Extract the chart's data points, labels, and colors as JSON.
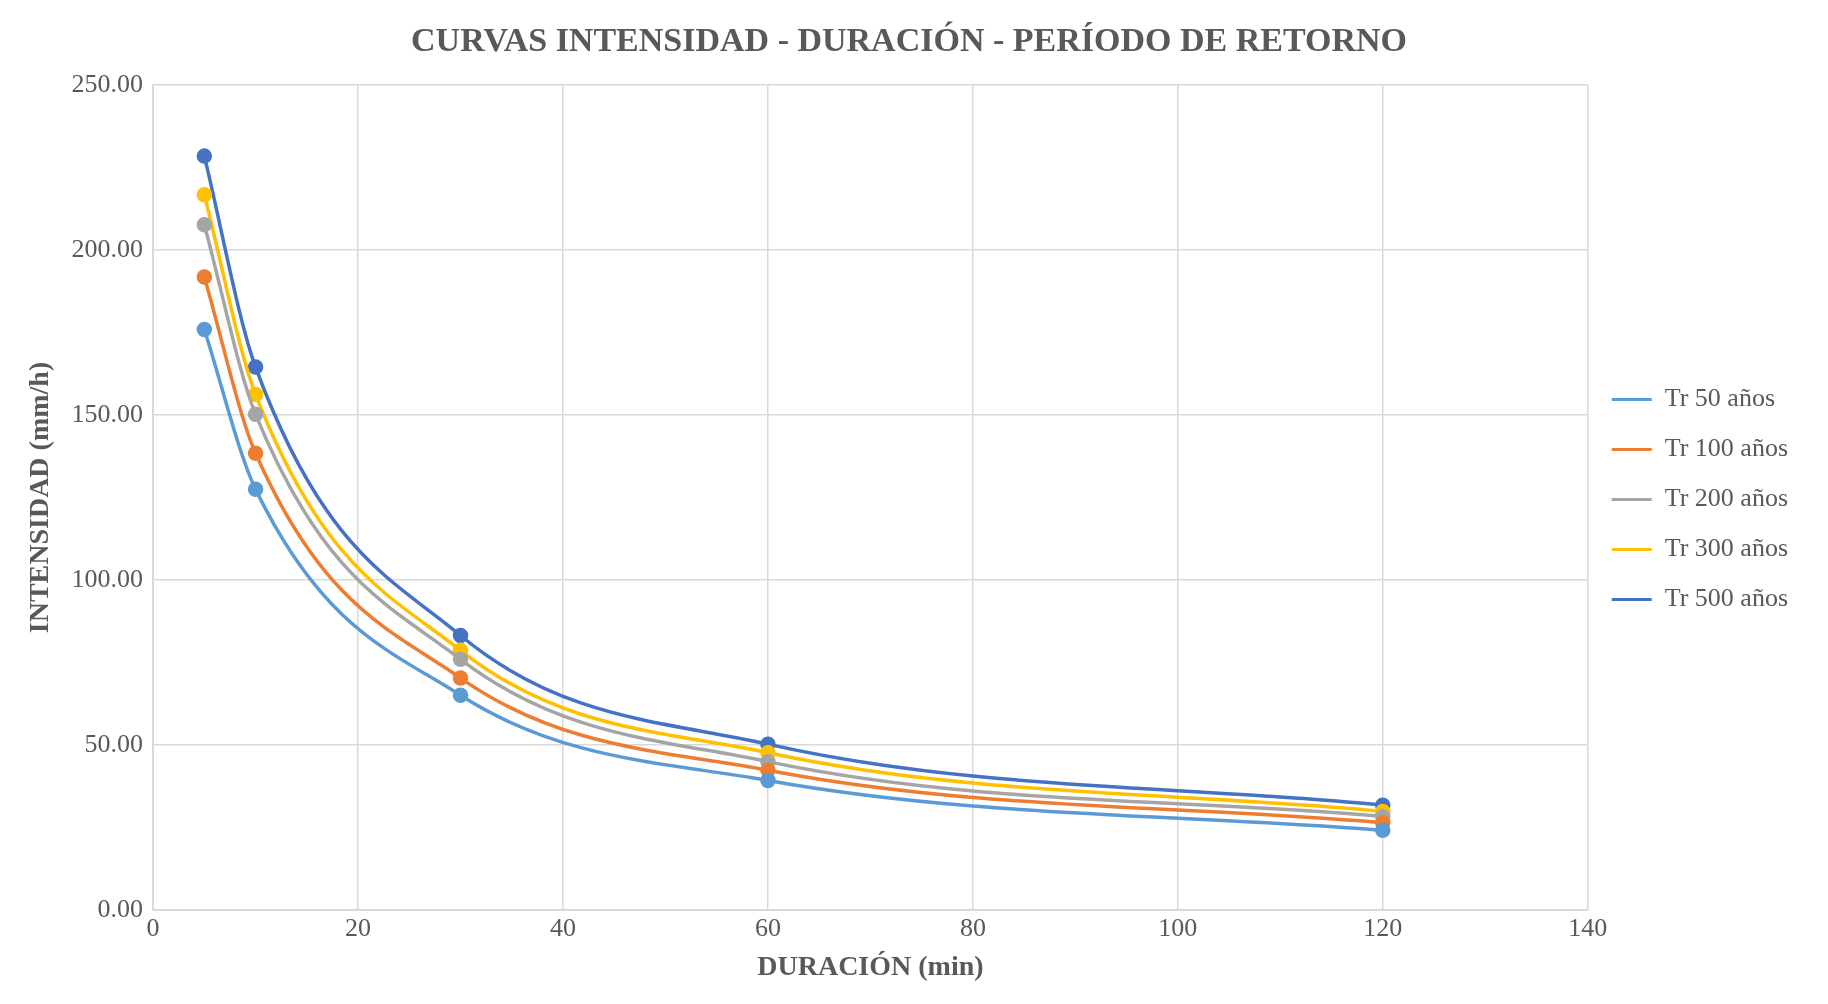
{
  "chart_data": {
    "type": "line",
    "title": "CURVAS INTENSIDAD - DURACIÓN - PERÍODO DE RETORNO",
    "xlabel": "DURACIÓN (min)",
    "ylabel": "INTENSIDAD (mm/h)",
    "x": [
      5,
      10,
      30,
      60,
      120
    ],
    "series": [
      {
        "name": "Tr 50 años",
        "color": "#5b9bd5",
        "values": [
          175.9,
          127.5,
          65.1,
          39.3,
          24.2
        ]
      },
      {
        "name": "Tr 100 años",
        "color": "#ed7d31",
        "values": [
          191.8,
          138.4,
          70.3,
          42.4,
          26.5
        ]
      },
      {
        "name": "Tr 200 años",
        "color": "#a5a5a5",
        "values": [
          207.6,
          150.2,
          76.0,
          45.0,
          28.4
        ]
      },
      {
        "name": "Tr 300 años",
        "color": "#ffc000",
        "values": [
          216.7,
          156.2,
          78.7,
          47.7,
          29.9
        ]
      },
      {
        "name": "Tr 500 años",
        "color": "#4472c4",
        "values": [
          228.4,
          164.5,
          83.2,
          50.3,
          31.8
        ]
      }
    ],
    "xlim": [
      0,
      140
    ],
    "xticks": [
      0,
      20,
      40,
      60,
      80,
      100,
      120,
      140
    ],
    "ylim": [
      0,
      250
    ],
    "yticks": [
      {
        "value": 0,
        "label": "0.00"
      },
      {
        "value": 50,
        "label": "50.00"
      },
      {
        "value": 100,
        "label": "100.00"
      },
      {
        "value": 150,
        "label": "150.00"
      },
      {
        "value": 200,
        "label": "200.00"
      },
      {
        "value": 250,
        "label": "250.00"
      }
    ],
    "grid": true,
    "legend": "right",
    "marker": "circle",
    "line_style": "solid"
  }
}
